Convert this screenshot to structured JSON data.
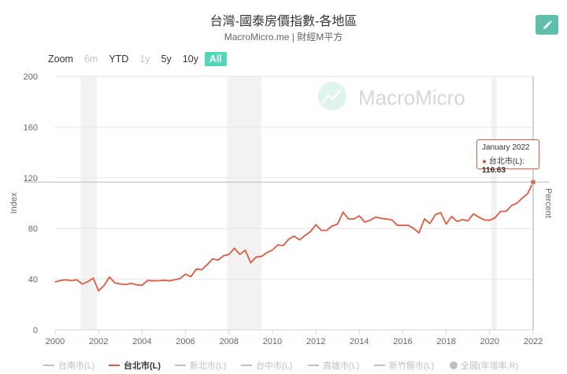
{
  "title": "台灣-國泰房價指數-各地區",
  "subtitle": "MacroMicro.me | 財經M平方",
  "watermark": "MacroMicro",
  "edit_icon": "pencil-icon",
  "colors": {
    "accent": "#50d8b8",
    "series": "#e15a3f",
    "recession_band": "#f2f2f2",
    "grid": "#e6e6e6",
    "edit_button": "#5fbfaa"
  },
  "zoom": {
    "label": "Zoom",
    "buttons": [
      {
        "label": "6m",
        "state": "disabled"
      },
      {
        "label": "YTD",
        "state": "normal"
      },
      {
        "label": "1y",
        "state": "disabled"
      },
      {
        "label": "5y",
        "state": "normal"
      },
      {
        "label": "10y",
        "state": "normal"
      },
      {
        "label": "All",
        "state": "active"
      }
    ]
  },
  "tooltip": {
    "date": "January 2022",
    "series": "台北市(L)",
    "value": "116.63"
  },
  "legend": [
    {
      "label": "台南市(L)",
      "active": false,
      "marker": "line"
    },
    {
      "label": "台北市(L)",
      "active": true,
      "marker": "line"
    },
    {
      "label": "新北市(L)",
      "active": false,
      "marker": "line"
    },
    {
      "label": "台中市(L)",
      "active": false,
      "marker": "line"
    },
    {
      "label": "高雄市(L)",
      "active": false,
      "marker": "line"
    },
    {
      "label": "新竹縣市(L)",
      "active": false,
      "marker": "line"
    },
    {
      "label": "全國(年增率,R)",
      "active": false,
      "marker": "circle"
    }
  ],
  "chart_data": {
    "type": "line",
    "ylabel": "Index",
    "y2label": "Percent",
    "ylim": [
      0,
      200
    ],
    "yticks": [
      0,
      40,
      80,
      120,
      160,
      200
    ],
    "xlim": [
      2000,
      2022
    ],
    "xticks": [
      "2000",
      "2002",
      "2004",
      "2006",
      "2008",
      "2010",
      "2012",
      "2014",
      "2016",
      "2018",
      "2020",
      "2022"
    ],
    "recession_bands": [
      [
        2001.17,
        2001.92
      ],
      [
        2007.92,
        2009.5
      ],
      [
        2020.08,
        2020.33
      ]
    ],
    "crosshair_x": 2022.0,
    "series": [
      {
        "name": "台北市(L)",
        "color": "#e15a3f",
        "x": [
          2000.0,
          2000.25,
          2000.5,
          2000.75,
          2001.0,
          2001.25,
          2001.5,
          2001.75,
          2002.0,
          2002.25,
          2002.5,
          2002.75,
          2003.0,
          2003.25,
          2003.5,
          2003.75,
          2004.0,
          2004.25,
          2004.5,
          2004.75,
          2005.0,
          2005.25,
          2005.5,
          2005.75,
          2006.0,
          2006.25,
          2006.5,
          2006.75,
          2007.0,
          2007.25,
          2007.5,
          2007.75,
          2008.0,
          2008.25,
          2008.5,
          2008.75,
          2009.0,
          2009.25,
          2009.5,
          2009.75,
          2010.0,
          2010.25,
          2010.5,
          2010.75,
          2011.0,
          2011.25,
          2011.5,
          2011.75,
          2012.0,
          2012.25,
          2012.5,
          2012.75,
          2013.0,
          2013.25,
          2013.5,
          2013.75,
          2014.0,
          2014.25,
          2014.5,
          2014.75,
          2015.0,
          2015.25,
          2015.5,
          2015.75,
          2016.0,
          2016.25,
          2016.5,
          2016.75,
          2017.0,
          2017.25,
          2017.5,
          2017.75,
          2018.0,
          2018.25,
          2018.5,
          2018.75,
          2019.0,
          2019.25,
          2019.5,
          2019.75,
          2020.0,
          2020.25,
          2020.5,
          2020.75,
          2021.0,
          2021.25,
          2021.5,
          2021.75,
          2022.0
        ],
        "y": [
          37.8,
          39.0,
          39.5,
          38.8,
          39.5,
          36.2,
          38.0,
          40.9,
          30.8,
          35.0,
          41.7,
          37.0,
          36.3,
          35.8,
          36.8,
          35.5,
          35.2,
          39.0,
          38.7,
          38.8,
          39.1,
          38.7,
          39.5,
          40.5,
          44.0,
          42.0,
          48.0,
          47.5,
          51.5,
          56.0,
          55.0,
          58.5,
          59.5,
          64.5,
          59.5,
          62.8,
          53.0,
          57.5,
          58.0,
          61.0,
          63.0,
          67.0,
          66.5,
          71.5,
          74.0,
          71.0,
          74.5,
          77.5,
          83.0,
          78.5,
          78.5,
          82.0,
          83.5,
          93.0,
          87.5,
          87.5,
          90.0,
          85.0,
          86.5,
          89.0,
          88.0,
          87.5,
          86.7,
          82.5,
          82.5,
          82.5,
          80.0,
          76.5,
          87.5,
          84.0,
          91.0,
          92.5,
          83.5,
          89.5,
          85.5,
          87.0,
          86.0,
          91.5,
          89.0,
          86.7,
          86.5,
          88.5,
          93.5,
          93.5,
          98.0,
          100.0,
          104.0,
          107.5,
          116.63
        ]
      }
    ]
  }
}
